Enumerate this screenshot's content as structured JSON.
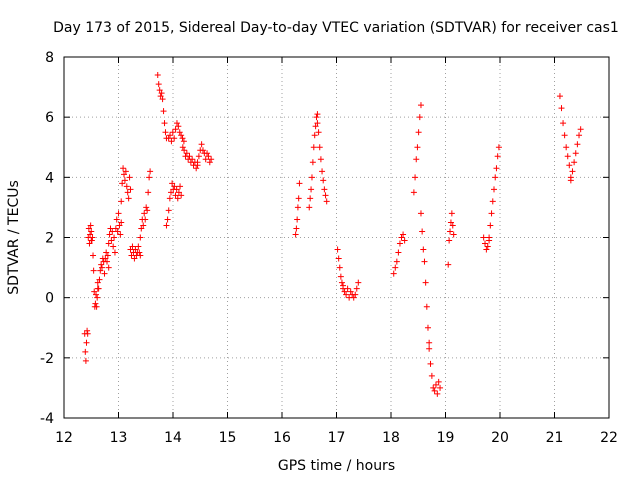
{
  "chart_data": {
    "type": "scatter",
    "title": "Day 173 of 2015, Sidereal Day-to-day VTEC variation (SDTVAR) for receiver cas1",
    "xlabel": "GPS time / hours",
    "ylabel": "SDTVAR / TECUs",
    "xlim": [
      12,
      22
    ],
    "ylim": [
      -4,
      8
    ],
    "xticks": [
      "12",
      "13",
      "14",
      "15",
      "16",
      "17",
      "18",
      "19",
      "20",
      "21",
      "22"
    ],
    "yticks": [
      "-4",
      "-2",
      "0",
      "2",
      "4",
      "6",
      "8"
    ],
    "grid": true,
    "marker": "+",
    "marker_color": "#ff0000",
    "segments": [
      {
        "x0": 12.38,
        "x1": 12.5,
        "values": [
          -1.2,
          -1.8,
          -2.1,
          -1.5,
          -1.1,
          -1.2,
          2.0,
          2.3,
          1.8,
          2.1,
          2.4,
          1.9
        ]
      },
      {
        "x0": 12.5,
        "x1": 12.62,
        "values": [
          2.2,
          1.9,
          2.0,
          1.4,
          0.9,
          0.2,
          -0.3,
          -0.2,
          0.1,
          -0.3,
          0.0,
          0.3
        ]
      },
      {
        "x0": 12.62,
        "x1": 12.82,
        "values": [
          0.5,
          0.3,
          0.6,
          0.9,
          1.1,
          1.0,
          1.3,
          1.2,
          0.8,
          1.3,
          1.5,
          1.2,
          1.4,
          1.0
        ]
      },
      {
        "x0": 12.82,
        "x1": 13.05,
        "values": [
          1.8,
          2.1,
          2.3,
          1.9,
          2.2,
          1.7,
          2.0,
          1.5,
          2.3,
          2.6,
          2.2,
          2.8,
          2.4,
          2.1,
          2.5
        ]
      },
      {
        "x0": 13.05,
        "x1": 13.22,
        "values": [
          3.2,
          3.8,
          4.3,
          4.1,
          3.9,
          4.2,
          3.7,
          3.5,
          3.3,
          4.0,
          3.6
        ]
      },
      {
        "x0": 13.22,
        "x1": 13.4,
        "values": [
          1.6,
          1.4,
          1.7,
          1.5,
          1.3,
          1.6,
          1.4,
          1.5,
          1.7,
          1.5,
          1.4
        ]
      },
      {
        "x0": 13.4,
        "x1": 13.58,
        "values": [
          2.0,
          2.3,
          2.6,
          2.4,
          2.8,
          2.6,
          3.0,
          2.9,
          3.5,
          4.0,
          4.2
        ]
      },
      {
        "x0": 13.72,
        "x1": 13.88,
        "values": [
          7.4,
          7.1,
          6.9,
          6.7,
          6.8,
          6.6,
          6.2,
          5.8,
          5.5,
          5.3
        ]
      },
      {
        "x0": 13.88,
        "x1": 14.15,
        "values": [
          2.4,
          2.6,
          2.9,
          3.3,
          3.5,
          3.8,
          3.6,
          3.7,
          3.4,
          3.6,
          3.3,
          3.5,
          3.7,
          3.4
        ]
      },
      {
        "x0": 13.92,
        "x1": 14.2,
        "values": [
          5.3,
          5.4,
          5.2,
          5.5,
          5.3,
          5.6,
          5.8,
          5.7,
          5.5,
          5.4,
          5.3,
          5.2
        ]
      },
      {
        "x0": 14.18,
        "x1": 14.45,
        "values": [
          5.0,
          4.9,
          4.7,
          4.8,
          4.6,
          4.7,
          4.5,
          4.6,
          4.4,
          4.5,
          4.3,
          4.4
        ]
      },
      {
        "x0": 14.45,
        "x1": 14.7,
        "values": [
          4.5,
          4.7,
          4.9,
          5.1,
          4.9,
          4.8,
          4.6,
          4.8,
          4.7,
          4.5,
          4.6
        ]
      },
      {
        "x0": 16.25,
        "x1": 16.32,
        "values": [
          2.1,
          2.3,
          2.6,
          3.0,
          3.3,
          3.8
        ]
      },
      {
        "x0": 16.5,
        "x1": 16.65,
        "values": [
          3.0,
          3.3,
          3.6,
          4.0,
          4.5,
          5.0,
          5.4,
          5.7,
          6.0,
          6.1
        ]
      },
      {
        "x0": 16.65,
        "x1": 16.82,
        "values": [
          5.8,
          5.5,
          5.0,
          4.6,
          4.2,
          3.9,
          3.6,
          3.4,
          3.2
        ]
      },
      {
        "x0": 17.02,
        "x1": 17.12,
        "values": [
          1.6,
          1.3,
          1.0,
          0.7,
          0.5,
          0.3
        ]
      },
      {
        "x0": 17.12,
        "x1": 17.4,
        "values": [
          0.4,
          0.2,
          0.1,
          0.3,
          0.0,
          0.2,
          0.1,
          0.0,
          0.1,
          0.3,
          0.5
        ]
      },
      {
        "x0": 18.05,
        "x1": 18.25,
        "values": [
          0.8,
          1.0,
          1.2,
          1.5,
          1.8,
          2.0,
          2.1,
          1.9
        ]
      },
      {
        "x0": 18.42,
        "x1": 18.55,
        "values": [
          3.5,
          4.0,
          4.6,
          5.0,
          5.5,
          6.0,
          6.4
        ]
      },
      {
        "x0": 18.55,
        "x1": 18.7,
        "values": [
          2.8,
          2.2,
          1.6,
          1.2,
          0.5,
          -0.3,
          -1.0,
          -1.5
        ]
      },
      {
        "x0": 18.7,
        "x1": 18.9,
        "values": [
          -1.7,
          -2.2,
          -2.6,
          -3.0,
          -3.1,
          -2.9,
          -3.2,
          -2.8,
          -3.0
        ]
      },
      {
        "x0": 19.05,
        "x1": 19.15,
        "values": [
          1.1,
          1.9,
          2.2,
          2.5,
          2.8,
          2.4,
          2.1
        ]
      },
      {
        "x0": 19.7,
        "x1": 19.8,
        "values": [
          2.0,
          1.8,
          1.6,
          1.7,
          1.9
        ]
      },
      {
        "x0": 19.8,
        "x1": 19.98,
        "values": [
          2.0,
          2.4,
          2.8,
          3.2,
          3.6,
          4.0,
          4.3,
          4.7,
          5.0
        ]
      },
      {
        "x0": 21.1,
        "x1": 21.3,
        "values": [
          6.7,
          6.3,
          5.8,
          5.4,
          5.0,
          4.7,
          4.4,
          4.0
        ]
      },
      {
        "x0": 21.3,
        "x1": 21.48,
        "values": [
          3.9,
          4.2,
          4.5,
          4.8,
          5.1,
          5.4,
          5.6
        ]
      }
    ]
  }
}
